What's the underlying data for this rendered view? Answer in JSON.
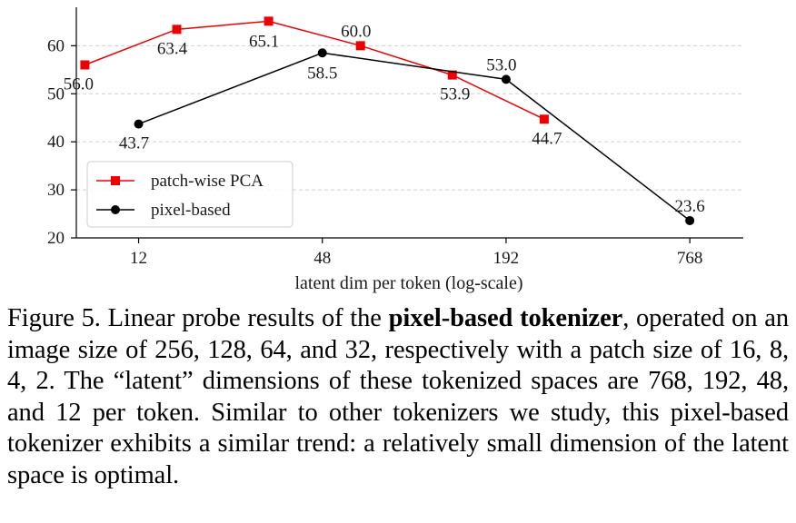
{
  "chart_data": {
    "type": "line",
    "title": "",
    "xlabel": "latent dim per token (log-scale)",
    "ylabel": "",
    "xscale": "log",
    "xlim": [
      7.5,
      1150
    ],
    "ylim": [
      20,
      68
    ],
    "yticks": [
      20,
      30,
      40,
      50,
      60
    ],
    "xticks": [
      12,
      48,
      192,
      768
    ],
    "grid": "horizontal dashed",
    "legend_position": "lower-left",
    "series": [
      {
        "name": "patch-wise PCA",
        "color": "#ee0000",
        "marker": "square",
        "x": [
          8,
          16,
          32,
          64,
          128,
          256
        ],
        "y": [
          56.0,
          63.4,
          65.1,
          60.0,
          53.9,
          44.7
        ],
        "labels": [
          "56.0",
          "63.4",
          "65.1",
          "60.0",
          "53.9",
          "44.7"
        ]
      },
      {
        "name": "pixel-based",
        "color": "#000000",
        "marker": "circle",
        "x": [
          12,
          48,
          192,
          768
        ],
        "y": [
          43.7,
          58.5,
          53.0,
          23.6
        ],
        "labels": [
          "43.7",
          "58.5",
          "53.0",
          "23.6"
        ]
      }
    ]
  },
  "caption": {
    "prefix": "Figure 5.  Linear probe results of the ",
    "bold": "pixel-based tokenizer",
    "suffix": ", operated on an image size of 256, 128, 64, and 32, respectively with a patch size of 16, 8, 4, 2. The “latent” dimensions of these tokenized spaces are 768, 192, 48, and 12 per token. Similar to other tokenizers we study, this pixel-based tokenizer exhibits a similar trend: a relatively small dimension of the latent space is optimal."
  }
}
